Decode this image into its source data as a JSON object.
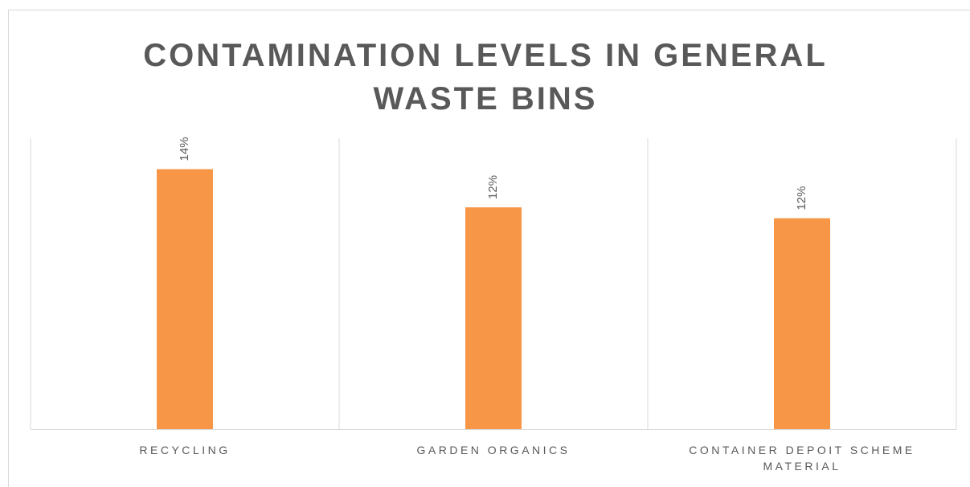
{
  "chart_data": {
    "type": "bar",
    "title": "CONTAMINATION LEVELS IN GENERAL WASTE BINS",
    "categories": [
      "RECYCLING",
      "GARDEN ORGANICS",
      "CONTAINER DEPOIT SCHEME MATERIAL"
    ],
    "values": [
      14.3,
      12.2,
      11.6
    ],
    "value_labels": [
      "14%",
      "12%",
      "12%"
    ],
    "color": "#f79646",
    "ylim": [
      0,
      16
    ]
  }
}
